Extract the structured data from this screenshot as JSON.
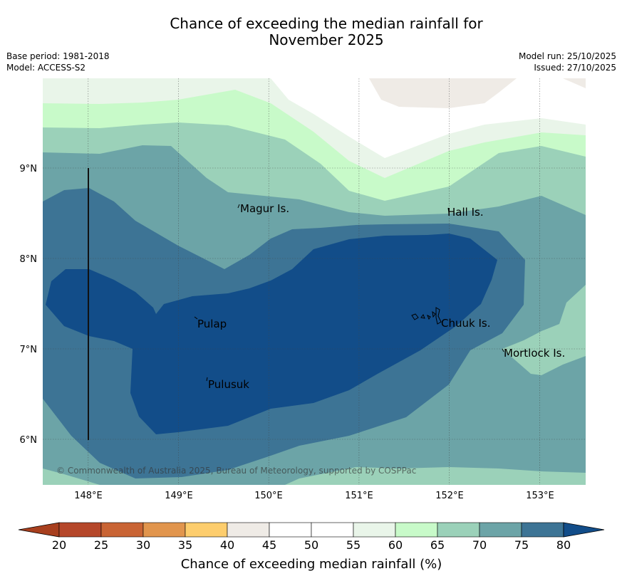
{
  "title": {
    "line1": "Chance of exceeding the median rainfall for",
    "line2": "November 2025"
  },
  "meta": {
    "base_period": "Base period: 1981-2018",
    "model": "Model: ACCESS-S2",
    "model_run": "Model run: 25/10/2025",
    "issued": "Issued: 27/10/2025"
  },
  "map": {
    "lon_ticks": [
      "148°E",
      "149°E",
      "150°E",
      "151°E",
      "152°E",
      "153°E"
    ],
    "lat_ticks": [
      "9°N",
      "8°N",
      "7°N",
      "6°N"
    ],
    "places": [
      "Magur Is.",
      "Hall Is.",
      "Pulap",
      "Chuuk Is.",
      "Mortlock Is.",
      "Pulusuk"
    ],
    "copyright": "© Commonwealth of Australia 2025, Bureau of Meteorology, supported by COSPPac"
  },
  "colorbar": {
    "label": "Chance of exceeding median rainfall (%)",
    "ticks": [
      "20",
      "25",
      "30",
      "35",
      "40",
      "45",
      "50",
      "55",
      "60",
      "65",
      "70",
      "75",
      "80"
    ],
    "colors": [
      "#a83f1e",
      "#b5472a",
      "#c96434",
      "#e1954d",
      "#fdcd6d",
      "#efebe6",
      "#ffffff",
      "#ffffff",
      "#e9f5e9",
      "#c8fac9",
      "#9bd1b9",
      "#6ca4a7",
      "#3d7495",
      "#124d89"
    ]
  }
}
